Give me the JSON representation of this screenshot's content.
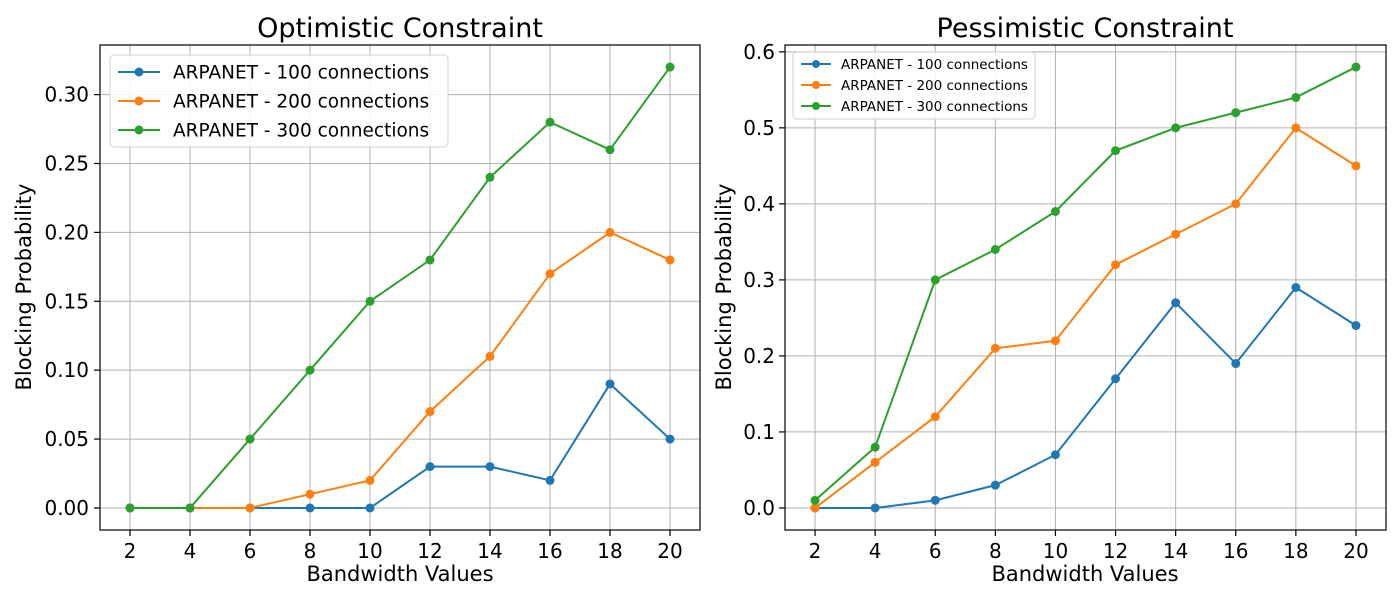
{
  "chart_data": [
    {
      "type": "line",
      "title": "Optimistic Constraint",
      "xlabel": "Bandwidth Values",
      "ylabel": "Blocking Probability",
      "x": [
        2,
        4,
        6,
        8,
        10,
        12,
        14,
        16,
        18,
        20
      ],
      "xticks": [
        "2",
        "4",
        "6",
        "8",
        "10",
        "12",
        "14",
        "16",
        "18",
        "20"
      ],
      "xlim": [
        1,
        21
      ],
      "ylim": [
        -0.016,
        0.336
      ],
      "yticks": [
        "0.00",
        "0.05",
        "0.10",
        "0.15",
        "0.20",
        "0.25",
        "0.30"
      ],
      "grid": true,
      "legend": "top-left",
      "series": [
        {
          "name": "ARPANET - 100 connections",
          "color": "#1f77b4",
          "values": [
            0.0,
            0.0,
            0.0,
            0.0,
            0.0,
            0.03,
            0.03,
            0.02,
            0.09,
            0.05
          ]
        },
        {
          "name": "ARPANET - 200 connections",
          "color": "#ff7f0e",
          "values": [
            0.0,
            0.0,
            0.0,
            0.01,
            0.02,
            0.07,
            0.11,
            0.17,
            0.2,
            0.18
          ]
        },
        {
          "name": "ARPANET - 300 connections",
          "color": "#2ca02c",
          "values": [
            0.0,
            0.0,
            0.05,
            0.1,
            0.15,
            0.18,
            0.24,
            0.28,
            0.26,
            0.32
          ]
        }
      ]
    },
    {
      "type": "line",
      "title": "Pessimistic Constraint",
      "xlabel": "Bandwidth Values",
      "ylabel": "Blocking Probability",
      "x": [
        2,
        4,
        6,
        8,
        10,
        12,
        14,
        16,
        18,
        20
      ],
      "xticks": [
        "2",
        "4",
        "6",
        "8",
        "10",
        "12",
        "14",
        "16",
        "18",
        "20"
      ],
      "xlim": [
        1,
        21
      ],
      "ylim": [
        -0.029,
        0.609
      ],
      "yticks": [
        "0.0",
        "0.1",
        "0.2",
        "0.3",
        "0.4",
        "0.5",
        "0.6"
      ],
      "grid": true,
      "legend": "top-left",
      "series": [
        {
          "name": "ARPANET - 100 connections",
          "color": "#1f77b4",
          "values": [
            0.0,
            0.0,
            0.01,
            0.03,
            0.07,
            0.17,
            0.27,
            0.19,
            0.29,
            0.24
          ]
        },
        {
          "name": "ARPANET - 200 connections",
          "color": "#ff7f0e",
          "values": [
            0.0,
            0.06,
            0.12,
            0.21,
            0.22,
            0.32,
            0.36,
            0.4,
            0.5,
            0.45
          ]
        },
        {
          "name": "ARPANET - 300 connections",
          "color": "#2ca02c",
          "values": [
            0.01,
            0.08,
            0.3,
            0.34,
            0.39,
            0.47,
            0.5,
            0.52,
            0.54,
            0.58
          ]
        }
      ]
    }
  ]
}
